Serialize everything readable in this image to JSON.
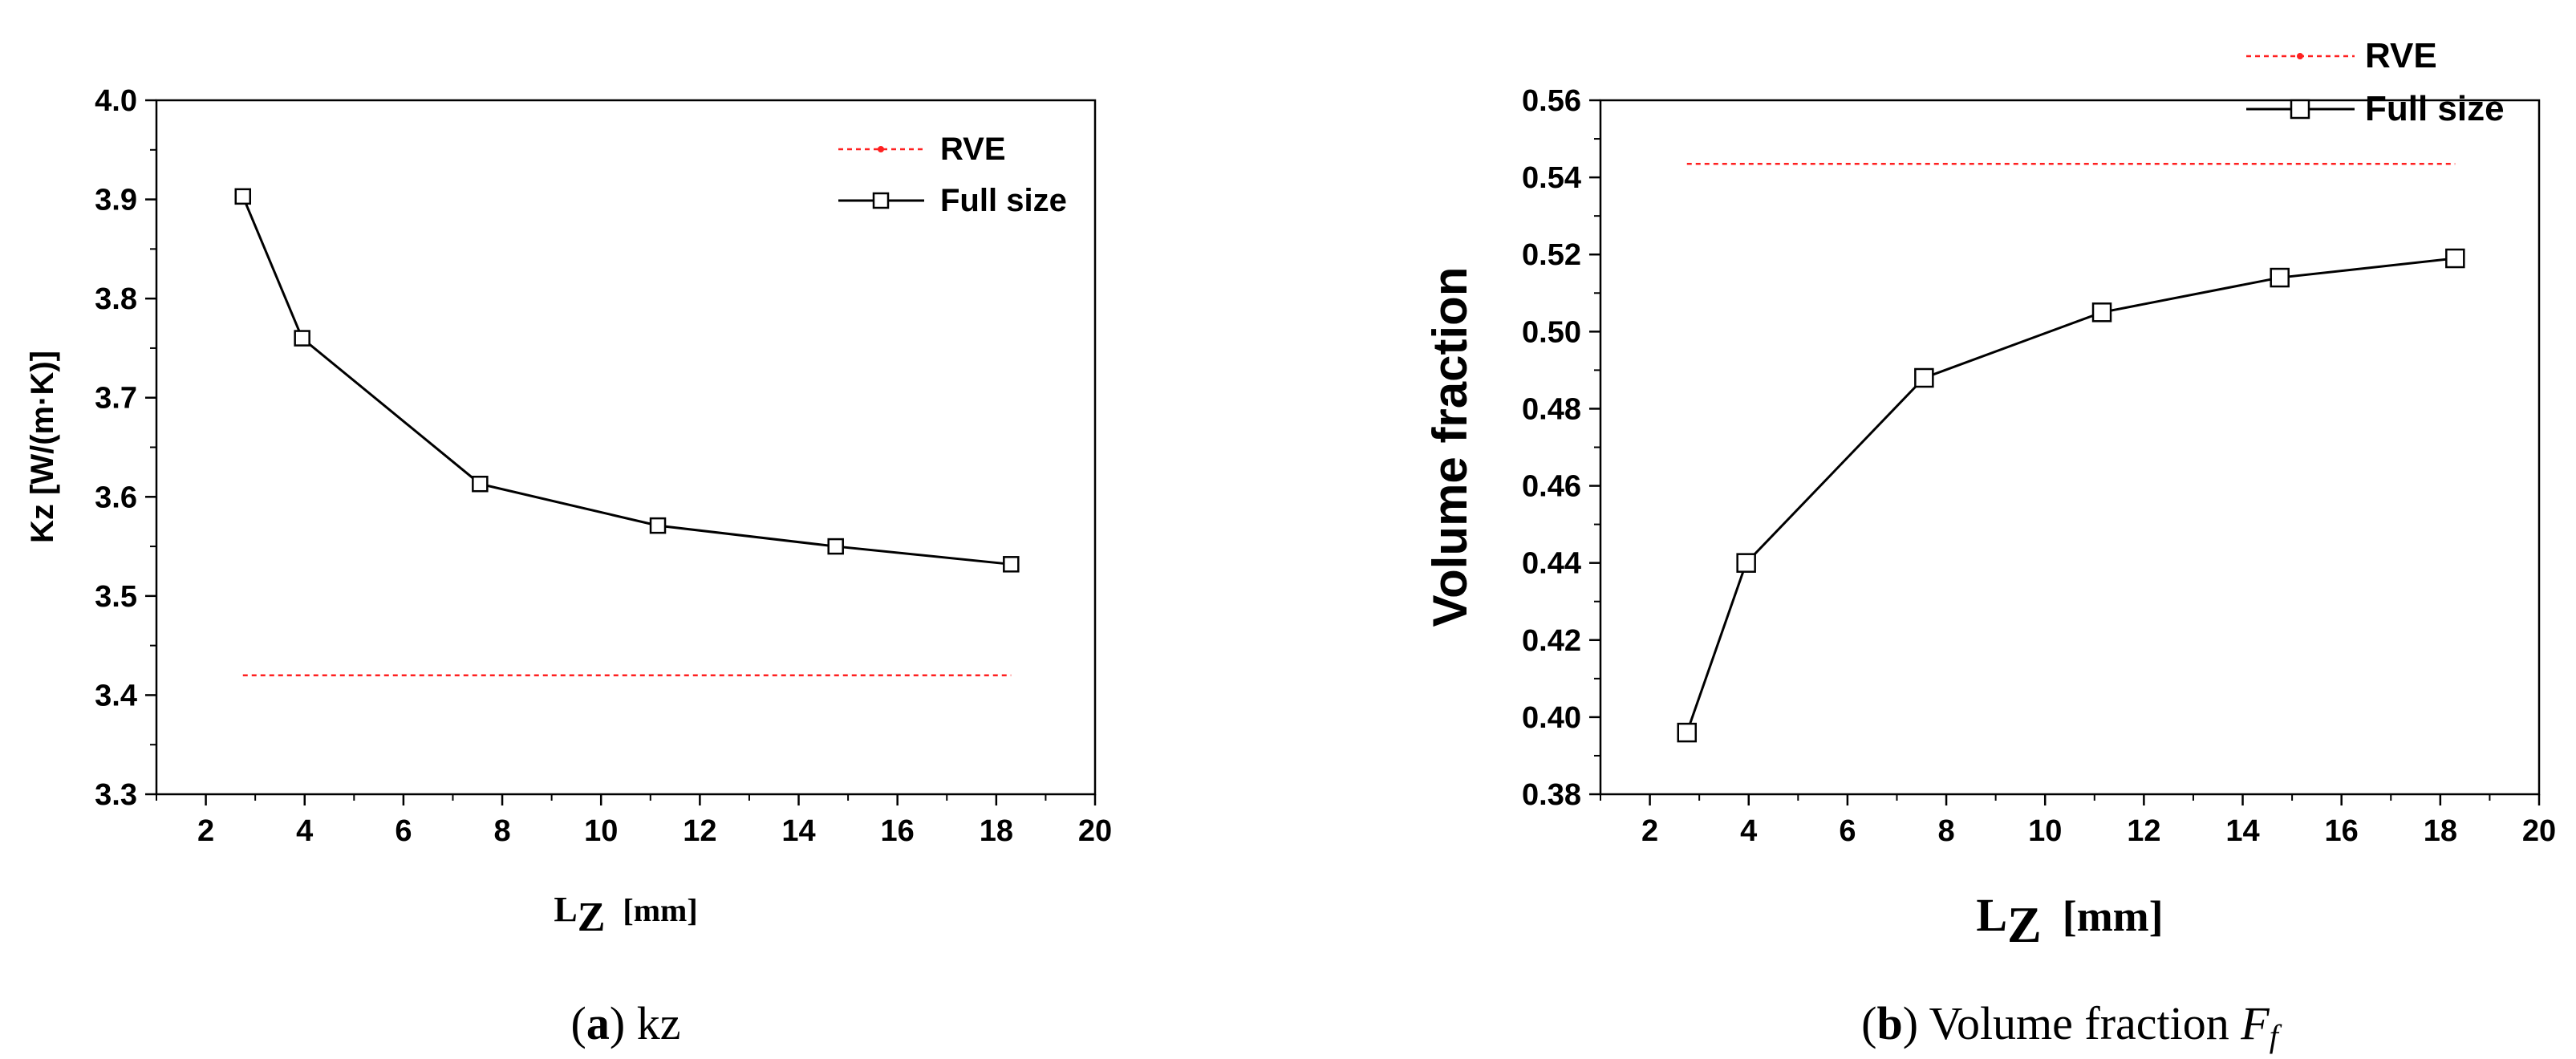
{
  "chart_data": [
    {
      "type": "line",
      "ylabel": "Kz [W/(m·K)]",
      "xlabel_main": "L",
      "xlabel_sub": "Z",
      "xlabel_unit": "[mm]",
      "xlim": [
        1,
        20
      ],
      "ylim": [
        3.3,
        4.0
      ],
      "xticks": [
        2,
        4,
        6,
        8,
        10,
        12,
        14,
        16,
        18,
        20
      ],
      "yticks": [
        "3.3",
        "3.4",
        "3.5",
        "3.6",
        "3.7",
        "3.8",
        "3.9",
        "4.0"
      ],
      "legend_position": "top-right",
      "series": [
        {
          "name": "RVE",
          "style": "dotted",
          "color": "#ff2020",
          "x": [
            2.75,
            18.3
          ],
          "y": [
            3.42,
            3.42
          ]
        },
        {
          "name": "Full size",
          "style": "solid",
          "color": "#000000",
          "marker": "open-square",
          "x": [
            2.75,
            3.95,
            7.55,
            11.15,
            14.75,
            18.3
          ],
          "y": [
            3.903,
            3.76,
            3.613,
            3.571,
            3.55,
            3.532
          ]
        }
      ],
      "caption": {
        "open": "(",
        "letter": "a",
        "close": ")",
        "text": " kz"
      }
    },
    {
      "type": "line",
      "ylabel": "Volume fraction",
      "xlabel_main": "L",
      "xlabel_sub": "Z",
      "xlabel_unit": "[mm]",
      "xlim": [
        1,
        20
      ],
      "ylim": [
        0.38,
        0.56
      ],
      "xticks": [
        2,
        4,
        6,
        8,
        10,
        12,
        14,
        16,
        18,
        20
      ],
      "yticks": [
        "0.38",
        "0.40",
        "0.42",
        "0.44",
        "0.46",
        "0.48",
        "0.50",
        "0.52",
        "0.54",
        "0.56"
      ],
      "legend_position": "top-right",
      "series": [
        {
          "name": "RVE",
          "style": "dotted",
          "color": "#ff2020",
          "x": [
            2.75,
            18.3
          ],
          "y": [
            0.5435,
            0.5435
          ]
        },
        {
          "name": "Full size",
          "style": "solid",
          "color": "#000000",
          "marker": "open-square",
          "x": [
            2.75,
            3.95,
            7.55,
            11.15,
            14.75,
            18.3
          ],
          "y": [
            0.396,
            0.44,
            0.488,
            0.505,
            0.514,
            0.519
          ]
        }
      ],
      "caption": {
        "open": "(",
        "letter": "b",
        "close": ")",
        "text": " Volume fraction ",
        "sym": "F",
        "sym_sub": "f"
      }
    }
  ]
}
